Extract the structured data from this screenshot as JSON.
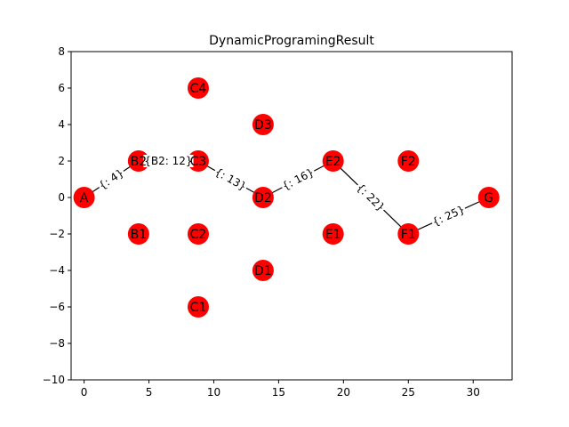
{
  "chart_data": {
    "type": "scatter",
    "title": "DynamicProgramingResult",
    "xlabel": "",
    "ylabel": "",
    "xlim": [
      -1,
      33
    ],
    "ylim": [
      -10,
      8
    ],
    "xticks": [
      0,
      5,
      10,
      15,
      20,
      25,
      30
    ],
    "yticks": [
      -10,
      -8,
      -6,
      -4,
      -2,
      0,
      2,
      4,
      6,
      8
    ],
    "grid": false,
    "node_color": "#ff0000",
    "edge_color": "#000000",
    "nodes": [
      {
        "label": "A",
        "x": 0,
        "y": 0
      },
      {
        "label": "B2",
        "x": 4.2,
        "y": 2
      },
      {
        "label": "B1",
        "x": 4.2,
        "y": -2
      },
      {
        "label": "C4",
        "x": 8.8,
        "y": 6
      },
      {
        "label": "C3",
        "x": 8.8,
        "y": 2
      },
      {
        "label": "C2",
        "x": 8.8,
        "y": -2
      },
      {
        "label": "C1",
        "x": 8.8,
        "y": -6
      },
      {
        "label": "D3",
        "x": 13.8,
        "y": 4
      },
      {
        "label": "D2",
        "x": 13.8,
        "y": 0
      },
      {
        "label": "D1",
        "x": 13.8,
        "y": -4
      },
      {
        "label": "E2",
        "x": 19.2,
        "y": 2
      },
      {
        "label": "E1",
        "x": 19.2,
        "y": -2
      },
      {
        "label": "F2",
        "x": 25,
        "y": 2
      },
      {
        "label": "F1",
        "x": 25,
        "y": -2
      },
      {
        "label": "G",
        "x": 31.2,
        "y": 0
      }
    ],
    "edges": [
      {
        "from": "A",
        "to": "B2",
        "label": "{: 4}"
      },
      {
        "from": "B2",
        "to": "C3",
        "label": "{B2: 12}"
      },
      {
        "from": "C3",
        "to": "D2",
        "label": "{: 13}"
      },
      {
        "from": "D2",
        "to": "E2",
        "label": "{: 16}"
      },
      {
        "from": "E2",
        "to": "F1",
        "label": "{: 22}"
      },
      {
        "from": "F1",
        "to": "G",
        "label": "{: 25}"
      }
    ]
  }
}
